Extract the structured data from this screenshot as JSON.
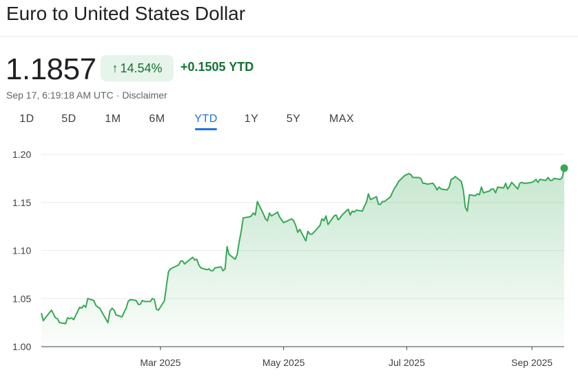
{
  "header": {
    "title": "Euro to United States Dollar"
  },
  "quote": {
    "price": "1.1857",
    "change_pct": "14.54%",
    "change_abs": "+0.1505 YTD",
    "timestamp": "Sep 17, 6:19:18 AM UTC",
    "separator": "·",
    "disclaimer": "Disclaimer"
  },
  "tabs": [
    {
      "label": "1D",
      "active": false
    },
    {
      "label": "5D",
      "active": false
    },
    {
      "label": "1M",
      "active": false
    },
    {
      "label": "6M",
      "active": false
    },
    {
      "label": "YTD",
      "active": true
    },
    {
      "label": "1Y",
      "active": false
    },
    {
      "label": "5Y",
      "active": false
    },
    {
      "label": "MAX",
      "active": false
    }
  ],
  "colors": {
    "line": "#34a853",
    "fill_top": "#34a853",
    "positive_text": "#137333",
    "badge_bg": "#e6f4ea",
    "active_tab": "#1a73e8",
    "grid": "#e8eaed"
  },
  "chart_data": {
    "type": "area",
    "title": "",
    "xlabel": "",
    "ylabel": "",
    "ylim": [
      1.0,
      1.2
    ],
    "xlim": [
      "2025-01-01",
      "2025-09-17"
    ],
    "grid": true,
    "y_ticks": [
      "1.00",
      "1.05",
      "1.10",
      "1.15",
      "1.20"
    ],
    "x_ticks": [
      {
        "label": "Mar 2025",
        "date": "2025-03-01"
      },
      {
        "label": "May 2025",
        "date": "2025-05-01"
      },
      {
        "label": "Jul 2025",
        "date": "2025-07-01"
      },
      {
        "label": "Sep 2025",
        "date": "2025-09-01"
      }
    ],
    "series": [
      {
        "x": [
          "2025-01-01",
          "2025-01-02",
          "2025-01-03",
          "2025-01-06",
          "2025-01-07",
          "2025-01-08",
          "2025-01-09",
          "2025-01-10",
          "2025-01-13",
          "2025-01-14",
          "2025-01-15",
          "2025-01-16",
          "2025-01-17",
          "2025-01-20",
          "2025-01-21",
          "2025-01-22",
          "2025-01-23",
          "2025-01-24",
          "2025-01-27",
          "2025-01-28",
          "2025-01-29",
          "2025-01-30",
          "2025-01-31",
          "2025-02-03",
          "2025-02-04",
          "2025-02-05",
          "2025-02-06",
          "2025-02-07",
          "2025-02-10",
          "2025-02-11",
          "2025-02-12",
          "2025-02-13",
          "2025-02-14",
          "2025-02-17",
          "2025-02-18",
          "2025-02-19",
          "2025-02-20",
          "2025-02-21",
          "2025-02-24",
          "2025-02-25",
          "2025-02-26",
          "2025-02-27",
          "2025-02-28",
          "2025-03-03",
          "2025-03-04",
          "2025-03-05",
          "2025-03-06",
          "2025-03-07",
          "2025-03-10",
          "2025-03-11",
          "2025-03-12",
          "2025-03-13",
          "2025-03-14",
          "2025-03-17",
          "2025-03-18",
          "2025-03-19",
          "2025-03-20",
          "2025-03-21",
          "2025-03-24",
          "2025-03-25",
          "2025-03-26",
          "2025-03-27",
          "2025-03-28",
          "2025-03-31",
          "2025-04-01",
          "2025-04-02",
          "2025-04-03",
          "2025-04-04",
          "2025-04-07",
          "2025-04-08",
          "2025-04-09",
          "2025-04-10",
          "2025-04-11",
          "2025-04-14",
          "2025-04-15",
          "2025-04-16",
          "2025-04-17",
          "2025-04-18",
          "2025-04-21",
          "2025-04-22",
          "2025-04-23",
          "2025-04-24",
          "2025-04-25",
          "2025-04-28",
          "2025-04-29",
          "2025-04-30",
          "2025-05-01",
          "2025-05-02",
          "2025-05-05",
          "2025-05-06",
          "2025-05-07",
          "2025-05-08",
          "2025-05-09",
          "2025-05-12",
          "2025-05-13",
          "2025-05-14",
          "2025-05-15",
          "2025-05-16",
          "2025-05-19",
          "2025-05-20",
          "2025-05-21",
          "2025-05-22",
          "2025-05-23",
          "2025-05-26",
          "2025-05-27",
          "2025-05-28",
          "2025-05-29",
          "2025-05-30",
          "2025-06-02",
          "2025-06-03",
          "2025-06-04",
          "2025-06-05",
          "2025-06-06",
          "2025-06-09",
          "2025-06-10",
          "2025-06-11",
          "2025-06-12",
          "2025-06-13",
          "2025-06-16",
          "2025-06-17",
          "2025-06-18",
          "2025-06-19",
          "2025-06-20",
          "2025-06-23",
          "2025-06-24",
          "2025-06-25",
          "2025-06-26",
          "2025-06-27",
          "2025-06-30",
          "2025-07-01",
          "2025-07-02",
          "2025-07-03",
          "2025-07-04",
          "2025-07-07",
          "2025-07-08",
          "2025-07-09",
          "2025-07-10",
          "2025-07-11",
          "2025-07-14",
          "2025-07-15",
          "2025-07-16",
          "2025-07-17",
          "2025-07-18",
          "2025-07-21",
          "2025-07-22",
          "2025-07-23",
          "2025-07-24",
          "2025-07-25",
          "2025-07-28",
          "2025-07-29",
          "2025-07-30",
          "2025-07-31",
          "2025-08-01",
          "2025-08-04",
          "2025-08-05",
          "2025-08-06",
          "2025-08-07",
          "2025-08-08",
          "2025-08-11",
          "2025-08-12",
          "2025-08-13",
          "2025-08-14",
          "2025-08-15",
          "2025-08-18",
          "2025-08-19",
          "2025-08-20",
          "2025-08-21",
          "2025-08-22",
          "2025-08-25",
          "2025-08-26",
          "2025-08-27",
          "2025-08-28",
          "2025-08-29",
          "2025-09-01",
          "2025-09-02",
          "2025-09-03",
          "2025-09-04",
          "2025-09-05",
          "2025-09-08",
          "2025-09-09",
          "2025-09-10",
          "2025-09-11",
          "2025-09-12",
          "2025-09-15",
          "2025-09-16",
          "2025-09-17"
        ],
        "values": [
          1.035,
          1.027,
          1.03,
          1.038,
          1.034,
          1.03,
          1.029,
          1.025,
          1.024,
          1.03,
          1.029,
          1.03,
          1.028,
          1.041,
          1.04,
          1.043,
          1.041,
          1.05,
          1.048,
          1.043,
          1.041,
          1.04,
          1.036,
          1.025,
          1.037,
          1.04,
          1.038,
          1.033,
          1.031,
          1.036,
          1.04,
          1.047,
          1.049,
          1.048,
          1.044,
          1.044,
          1.048,
          1.047,
          1.047,
          1.05,
          1.049,
          1.039,
          1.038,
          1.048,
          1.064,
          1.078,
          1.081,
          1.082,
          1.085,
          1.089,
          1.089,
          1.086,
          1.088,
          1.093,
          1.09,
          1.091,
          1.085,
          1.082,
          1.08,
          1.081,
          1.079,
          1.079,
          1.082,
          1.083,
          1.079,
          1.081,
          1.104,
          1.096,
          1.091,
          1.096,
          1.109,
          1.12,
          1.134,
          1.135,
          1.136,
          1.139,
          1.137,
          1.151,
          1.138,
          1.133,
          1.131,
          1.139,
          1.136,
          1.14,
          1.135,
          1.132,
          1.129,
          1.13,
          1.133,
          1.131,
          1.126,
          1.119,
          1.122,
          1.11,
          1.12,
          1.117,
          1.117,
          1.119,
          1.126,
          1.133,
          1.131,
          1.136,
          1.127,
          1.136,
          1.137,
          1.132,
          1.134,
          1.137,
          1.143,
          1.137,
          1.141,
          1.14,
          1.142,
          1.141,
          1.146,
          1.15,
          1.159,
          1.153,
          1.156,
          1.148,
          1.148,
          1.151,
          1.151,
          1.156,
          1.161,
          1.165,
          1.168,
          1.172,
          1.178,
          1.179,
          1.18,
          1.179,
          1.176,
          1.176,
          1.175,
          1.17,
          1.17,
          1.169,
          1.17,
          1.167,
          1.163,
          1.166,
          1.164,
          1.163,
          1.166,
          1.174,
          1.175,
          1.177,
          1.172,
          1.163,
          1.145,
          1.141,
          1.158,
          1.157,
          1.159,
          1.158,
          1.166,
          1.16,
          1.162,
          1.164,
          1.164,
          1.16,
          1.166,
          1.165,
          1.17,
          1.164,
          1.167,
          1.171,
          1.164,
          1.17,
          1.171,
          1.17,
          1.17,
          1.171,
          1.172,
          1.174,
          1.171,
          1.174,
          1.173,
          1.176,
          1.173,
          1.173,
          1.175,
          1.174,
          1.176,
          1.1857
        ]
      }
    ]
  }
}
